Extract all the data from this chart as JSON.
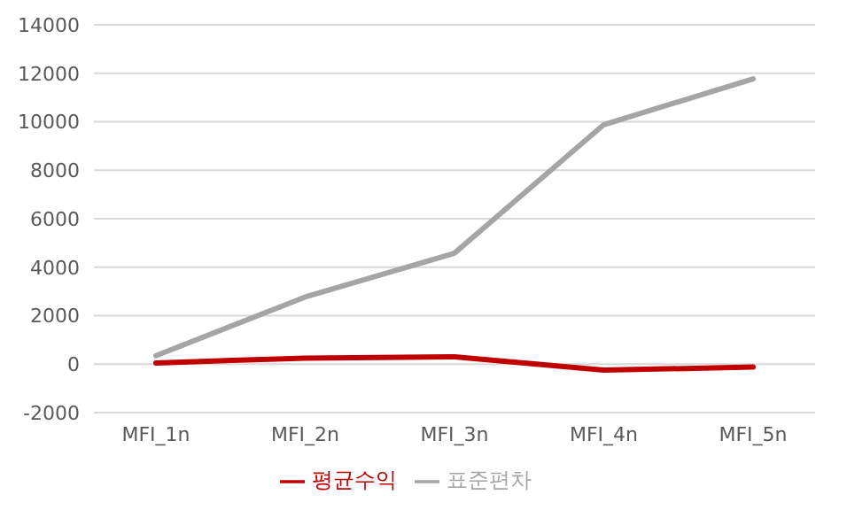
{
  "chart_data": {
    "type": "line",
    "categories": [
      "MFI_1n",
      "MFI_2n",
      "MFI_3n",
      "MFI_4n",
      "MFI_5n"
    ],
    "series": [
      {
        "name": "평균수익",
        "color": "#c00000",
        "values": [
          50,
          250,
          300,
          -250,
          -120
        ]
      },
      {
        "name": "표준편차",
        "color": "#a5a5a5",
        "values": [
          350,
          2770,
          4580,
          9880,
          11770
        ]
      }
    ],
    "ylim": [
      -2000,
      14000
    ],
    "yticks": [
      -2000,
      0,
      2000,
      4000,
      6000,
      8000,
      10000,
      12000,
      14000
    ],
    "grid": "y",
    "legend": "bottom",
    "marker": "none",
    "line_style": "solid"
  }
}
